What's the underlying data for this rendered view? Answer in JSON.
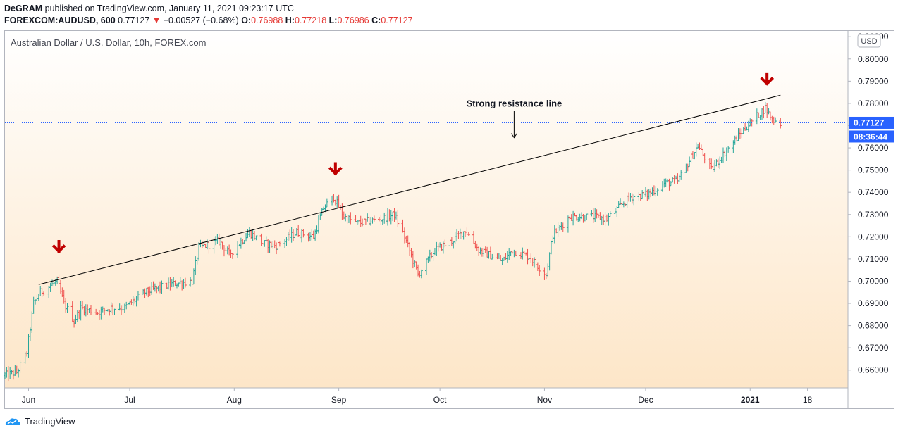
{
  "header": {
    "publisher": "DeGRAM",
    "published_text": "published on TradingView.com, January 11, 2021 09:23:17 UTC",
    "symbol": "FOREXCOM:AUDUSD, 600",
    "last_price": "0.77127",
    "change_arrow": "▼",
    "change": "−0.00527 (−0.68%)",
    "o_label": "O:",
    "o_value": "0.76988",
    "h_label": "H:",
    "h_value": "0.77218",
    "l_label": "L:",
    "l_value": "0.76986",
    "c_label": "C:",
    "c_value": "0.77127"
  },
  "chart_title": "Australian Dollar / U.S. Dollar, 10h, FOREX.com",
  "currency_badge": "USD",
  "price_label": "0.77127",
  "countdown_label": "08:36:44",
  "annotation_text": "Strong resistance line",
  "footer": {
    "brand": "TradingView"
  },
  "colors": {
    "up": "#26a69a",
    "down": "#ef5350",
    "arrow": "#c00000",
    "price_badge": "#2962ff",
    "background_top": "#ffffff",
    "background_bottom": "#fde6c8"
  },
  "chart_data": {
    "type": "candlestick",
    "title": "Australian Dollar / U.S. Dollar, 10h, FOREX.com",
    "ylim": [
      0.652,
      0.8126
    ],
    "y_ticks": [
      "0.81000",
      "0.80000",
      "0.79000",
      "0.78000",
      "0.77000",
      "0.76000",
      "0.75000",
      "0.74000",
      "0.73000",
      "0.72000",
      "0.71000",
      "0.70000",
      "0.69000",
      "0.68000",
      "0.67000",
      "0.66000"
    ],
    "x_ticks": [
      "Jun",
      "Jul",
      "Aug",
      "Sep",
      "Oct",
      "Nov",
      "Dec",
      "2021",
      "18"
    ],
    "x_tick_dates": [
      "2020-06-01",
      "2020-07-01",
      "2020-08-01",
      "2020-09-01",
      "2020-10-01",
      "2020-11-01",
      "2020-12-01",
      "2021-01-01",
      "2021-01-18"
    ],
    "x_range": [
      "2020-05-25",
      "2021-01-30"
    ],
    "resistance_line": {
      "start": [
        "2020-06-04",
        0.6985
      ],
      "end": [
        "2021-01-10",
        0.7837
      ]
    },
    "annotation": {
      "text": "Strong resistance line",
      "date": "2020-10-23",
      "value": 0.7785
    },
    "marked_peaks": [
      [
        "2020-06-10",
        0.7065
      ],
      [
        "2020-08-31",
        0.7415
      ],
      [
        "2021-01-06",
        0.7819
      ]
    ],
    "current_price": 0.77127,
    "series": {
      "anchors": [
        [
          "2020-05-25",
          0.6575
        ],
        [
          "2020-05-29",
          0.659
        ],
        [
          "2020-06-01",
          0.668
        ],
        [
          "2020-06-03",
          0.69
        ],
        [
          "2020-06-05",
          0.695
        ],
        [
          "2020-06-10",
          0.7
        ],
        [
          "2020-06-12",
          0.69
        ],
        [
          "2020-06-15",
          0.682
        ],
        [
          "2020-06-17",
          0.688
        ],
        [
          "2020-06-22",
          0.686
        ],
        [
          "2020-06-26",
          0.688
        ],
        [
          "2020-06-30",
          0.688
        ],
        [
          "2020-07-06",
          0.695
        ],
        [
          "2020-07-10",
          0.697
        ],
        [
          "2020-07-15",
          0.699
        ],
        [
          "2020-07-20",
          0.7
        ],
        [
          "2020-07-22",
          0.715
        ],
        [
          "2020-07-28",
          0.718
        ],
        [
          "2020-07-31",
          0.712
        ],
        [
          "2020-08-06",
          0.722
        ],
        [
          "2020-08-10",
          0.717
        ],
        [
          "2020-08-14",
          0.716
        ],
        [
          "2020-08-20",
          0.722
        ],
        [
          "2020-08-25",
          0.72
        ],
        [
          "2020-08-28",
          0.733
        ],
        [
          "2020-08-31",
          0.738
        ],
        [
          "2020-09-03",
          0.729
        ],
        [
          "2020-09-07",
          0.726
        ],
        [
          "2020-09-14",
          0.728
        ],
        [
          "2020-09-18",
          0.73
        ],
        [
          "2020-09-21",
          0.72
        ],
        [
          "2020-09-25",
          0.703
        ],
        [
          "2020-09-30",
          0.714
        ],
        [
          "2020-10-05",
          0.718
        ],
        [
          "2020-10-09",
          0.723
        ],
        [
          "2020-10-13",
          0.714
        ],
        [
          "2020-10-20",
          0.709
        ],
        [
          "2020-10-23",
          0.714
        ],
        [
          "2020-10-28",
          0.711
        ],
        [
          "2020-11-02",
          0.703
        ],
        [
          "2020-11-04",
          0.721
        ],
        [
          "2020-11-09",
          0.729
        ],
        [
          "2020-11-16",
          0.729
        ],
        [
          "2020-11-20",
          0.728
        ],
        [
          "2020-11-27",
          0.738
        ],
        [
          "2020-12-02",
          0.739
        ],
        [
          "2020-12-07",
          0.744
        ],
        [
          "2020-12-11",
          0.745
        ],
        [
          "2020-12-17",
          0.761
        ],
        [
          "2020-12-21",
          0.75
        ],
        [
          "2020-12-24",
          0.756
        ],
        [
          "2020-12-31",
          0.769
        ],
        [
          "2021-01-06",
          0.778
        ],
        [
          "2021-01-08",
          0.773
        ],
        [
          "2021-01-10",
          0.7713
        ]
      ],
      "last_close": 0.77127
    }
  }
}
